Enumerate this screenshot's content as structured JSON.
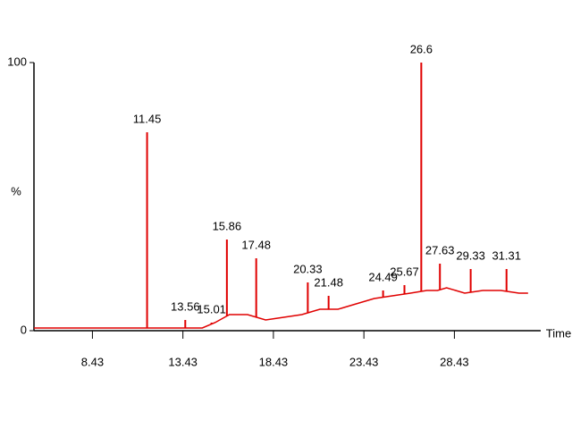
{
  "chart_data": {
    "type": "chromatogram",
    "x_label": "Time",
    "y_label": "%",
    "color": "#e00000",
    "xlim": [
      5.2,
      33.2
    ],
    "xticks": [
      8.43,
      13.43,
      18.43,
      23.43,
      28.43
    ],
    "ylim": [
      0,
      100
    ],
    "yticks": [
      0,
      100
    ],
    "x": [
      5.2,
      10,
      14.5,
      15.2,
      16,
      17,
      18,
      19,
      20,
      21,
      22,
      23,
      24,
      25,
      26,
      26.9,
      27.5,
      28,
      29,
      30,
      31,
      32,
      32.5
    ],
    "values": [
      1,
      1,
      1,
      3,
      6,
      6,
      4,
      5,
      6,
      8,
      8,
      10,
      12,
      13,
      14,
      15,
      15,
      16,
      14,
      15,
      15,
      14,
      14
    ],
    "peaks": {
      "x": [
        11.45,
        13.56,
        15.01,
        15.86,
        17.48,
        20.33,
        21.48,
        24.49,
        25.67,
        26.6,
        27.63,
        29.33,
        31.31
      ],
      "values": [
        74,
        4,
        3,
        34,
        27,
        18,
        13,
        15,
        17,
        100,
        25,
        23,
        23
      ]
    }
  }
}
